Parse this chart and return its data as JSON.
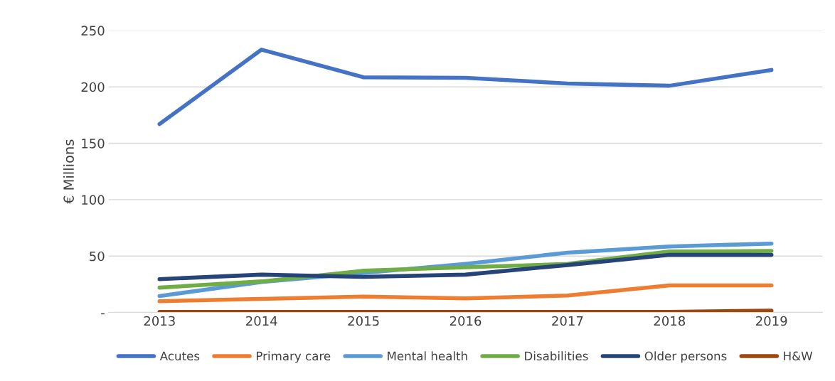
{
  "chart_data": {
    "type": "line",
    "ylabel": "€ Millions",
    "categories": [
      "2013",
      "2014",
      "2015",
      "2016",
      "2017",
      "2018",
      "2019"
    ],
    "series": [
      {
        "name": "Acutes",
        "color": "#4472c4",
        "values": [
          167,
          233,
          208.5,
          208,
          203,
          201,
          215
        ]
      },
      {
        "name": "Primary care",
        "color": "#ed7d31",
        "values": [
          10,
          12,
          14,
          12.5,
          15,
          24,
          24
        ]
      },
      {
        "name": "Mental health",
        "color": "#5b9bd5",
        "values": [
          14.5,
          27,
          35,
          43,
          53,
          58.5,
          61
        ]
      },
      {
        "name": "Disabilities",
        "color": "#70ad47",
        "values": [
          22,
          27.5,
          37,
          40,
          43,
          54,
          54.5
        ]
      },
      {
        "name": "Older persons",
        "color": "#264478",
        "values": [
          29.5,
          33.5,
          31.5,
          33.5,
          42,
          51,
          51
        ]
      },
      {
        "name": "H&W",
        "color": "#9e480e",
        "values": [
          0.5,
          0.5,
          0.5,
          0.5,
          0.5,
          0.5,
          1.5
        ]
      }
    ],
    "ylim": [
      0,
      250
    ],
    "yticks": [
      {
        "value": 0,
        "label": "-"
      },
      50,
      100,
      150,
      200,
      250
    ],
    "grid": "y",
    "legend": "bottom",
    "marker": "none",
    "line_style": "solid"
  }
}
